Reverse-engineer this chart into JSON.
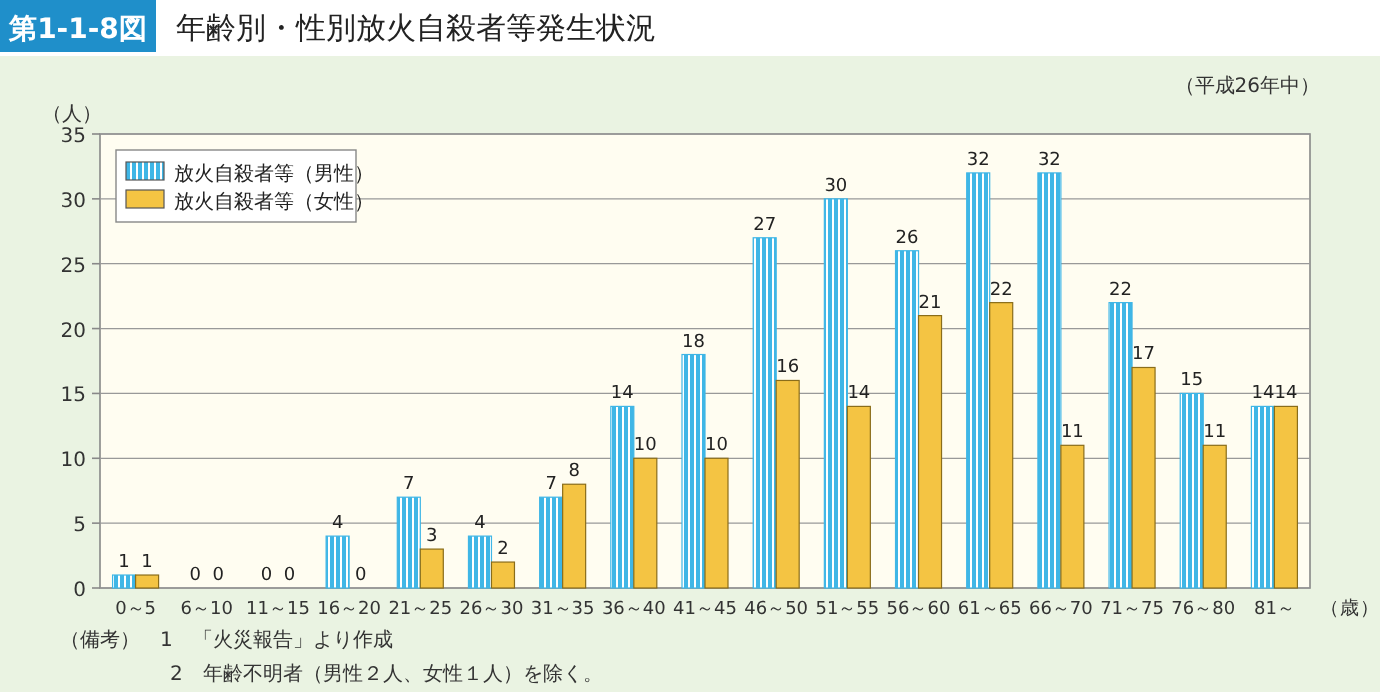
{
  "chart_data": {
    "type": "bar",
    "title": "年齢別・性別放火自殺者等発生状況",
    "subtitle": "（平成26年中）",
    "ylabel": "（人）",
    "xlabel": "（歳）",
    "annotations": [
      "第1-1-8図",
      "（備考）　1　「火災報告」より作成",
      "2　年齢不明者（男性２人、女性１人）を除く。"
    ],
    "categories": [
      "0～5",
      "6～10",
      "11～15",
      "16～20",
      "21～25",
      "26～30",
      "31～35",
      "36～40",
      "41～45",
      "46～50",
      "51～55",
      "56～60",
      "61～65",
      "66～70",
      "71～75",
      "76～80",
      "81～"
    ],
    "series": [
      {
        "name": "放火自殺者等（男性）",
        "color": "#3fb6e6",
        "values": [
          1,
          0,
          0,
          4,
          7,
          4,
          7,
          14,
          18,
          27,
          30,
          26,
          32,
          32,
          22,
          15,
          14
        ]
      },
      {
        "name": "放火自殺者等（女性）",
        "color": "#f4c443",
        "values": [
          1,
          0,
          0,
          0,
          3,
          2,
          8,
          10,
          10,
          16,
          14,
          21,
          22,
          11,
          17,
          11,
          14
        ]
      }
    ],
    "ylim": [
      0,
      35
    ],
    "yticks": [
      0,
      5,
      10,
      15,
      20,
      25,
      30,
      35
    ],
    "grid": "y",
    "legend": "top left",
    "data_labels": true
  }
}
